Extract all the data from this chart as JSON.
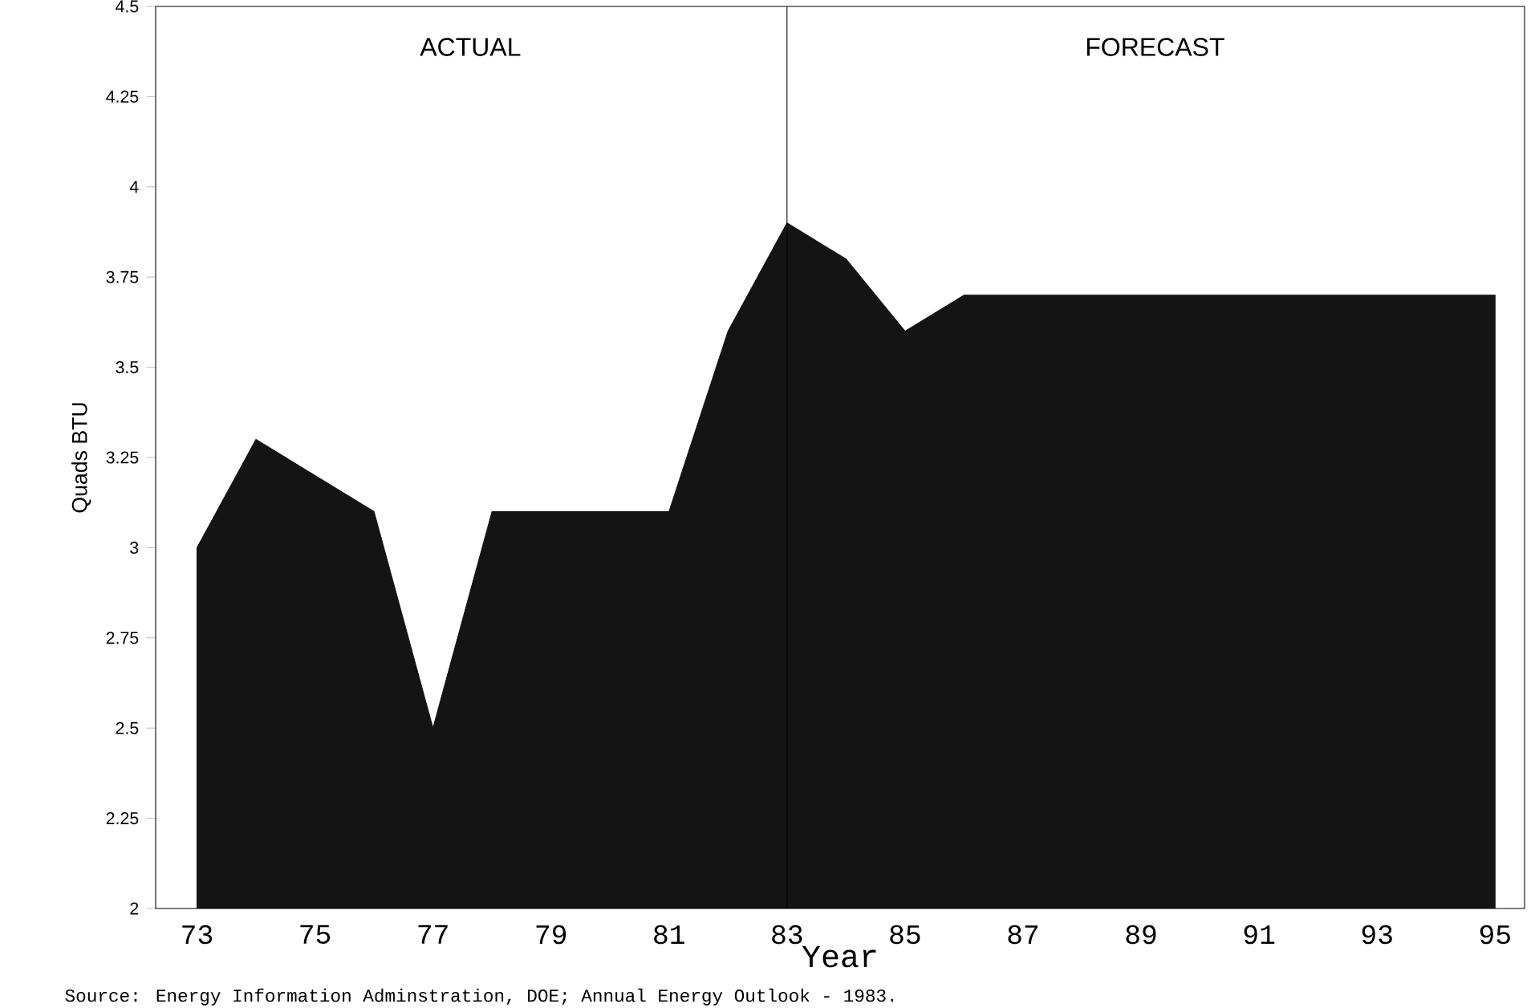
{
  "chart_data": {
    "type": "area",
    "xlabel": "Year",
    "ylabel": "Quads BTU",
    "x": [
      73,
      74,
      75,
      76,
      77,
      78,
      79,
      80,
      81,
      82,
      83,
      84,
      85,
      86,
      87,
      88,
      89,
      90,
      91,
      92,
      93,
      94,
      95
    ],
    "values": [
      3.0,
      3.3,
      3.2,
      3.1,
      2.5,
      3.1,
      3.1,
      3.1,
      3.1,
      3.6,
      3.9,
      3.8,
      3.6,
      3.7,
      3.7,
      3.7,
      3.7,
      3.7,
      3.7,
      3.7,
      3.7,
      3.7,
      3.7
    ],
    "color": "#141414",
    "xlim": [
      72.3,
      95.5
    ],
    "ylim": [
      2,
      4.5
    ],
    "xticks": [
      73,
      75,
      77,
      79,
      81,
      83,
      85,
      87,
      89,
      91,
      93,
      95
    ],
    "yticks": [
      2,
      2.25,
      2.5,
      2.75,
      3,
      3.25,
      3.5,
      3.75,
      4,
      4.25,
      4.5
    ],
    "ref_lines": [
      {
        "axis": "x",
        "value": 83
      }
    ],
    "annotations": [
      "ACTUAL",
      "FORECAST",
      "Source:  Energy Information Adminstration, DOE; Annual Energy Outlook - 1983."
    ]
  }
}
